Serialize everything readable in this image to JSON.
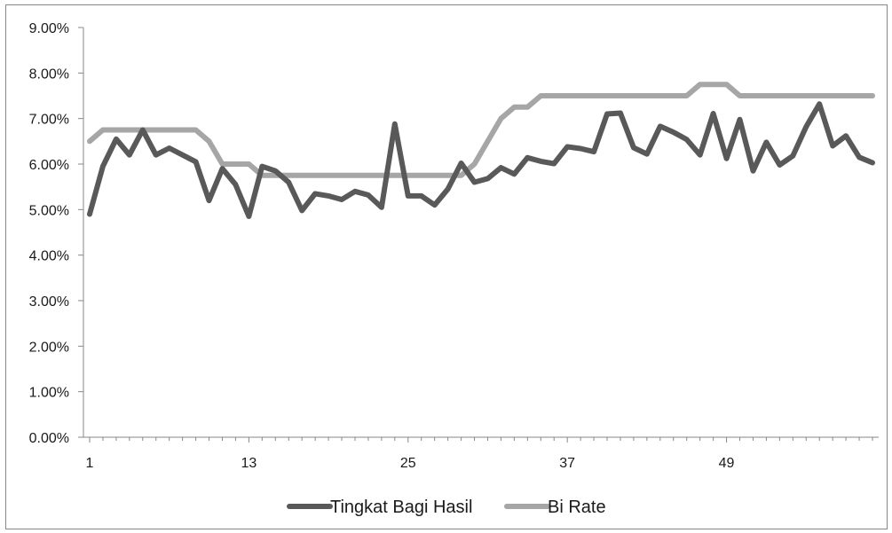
{
  "chart_data": {
    "type": "line",
    "title": "",
    "xlabel": "",
    "ylabel": "",
    "ylim": [
      0,
      0.09
    ],
    "y_ticks": [
      0,
      0.01,
      0.02,
      0.03,
      0.04,
      0.05,
      0.06,
      0.07,
      0.08,
      0.09
    ],
    "y_tick_labels": [
      "0.00%",
      "1.00%",
      "2.00%",
      "3.00%",
      "4.00%",
      "5.00%",
      "6.00%",
      "7.00%",
      "8.00%",
      "9.00%"
    ],
    "xlim": [
      1,
      60
    ],
    "x_ticks": [
      1,
      13,
      25,
      37,
      49
    ],
    "x_tick_labels": [
      "1",
      "13",
      "25",
      "37",
      "49"
    ],
    "grid": false,
    "legend_position": "bottom",
    "series": [
      {
        "name": "Tingkat Bagi Hasil",
        "color": "#595959",
        "values": [
          0.049,
          0.0595,
          0.0655,
          0.062,
          0.0675,
          0.062,
          0.0635,
          0.062,
          0.0605,
          0.052,
          0.059,
          0.0555,
          0.0485,
          0.0595,
          0.0585,
          0.056,
          0.0498,
          0.0535,
          0.053,
          0.0522,
          0.054,
          0.0532,
          0.0505,
          0.0688,
          0.053,
          0.053,
          0.051,
          0.0545,
          0.0602,
          0.056,
          0.0568,
          0.0592,
          0.0578,
          0.0614,
          0.0606,
          0.0601,
          0.0638,
          0.0634,
          0.0627,
          0.071,
          0.0712,
          0.0636,
          0.0622,
          0.0683,
          0.067,
          0.0654,
          0.062,
          0.0711,
          0.0612,
          0.0698,
          0.0585,
          0.0648,
          0.0598,
          0.0618,
          0.0682,
          0.0732,
          0.064,
          0.0662,
          0.0615,
          0.0603
        ]
      },
      {
        "name": "Bi Rate",
        "color": "#a6a6a6",
        "values": [
          0.065,
          0.0675,
          0.0675,
          0.0675,
          0.0675,
          0.0675,
          0.0675,
          0.0675,
          0.0675,
          0.065,
          0.06,
          0.06,
          0.06,
          0.0575,
          0.0575,
          0.0575,
          0.0575,
          0.0575,
          0.0575,
          0.0575,
          0.0575,
          0.0575,
          0.0575,
          0.0575,
          0.0575,
          0.0575,
          0.0575,
          0.0575,
          0.0575,
          0.06,
          0.065,
          0.07,
          0.0725,
          0.0725,
          0.075,
          0.075,
          0.075,
          0.075,
          0.075,
          0.075,
          0.075,
          0.075,
          0.075,
          0.075,
          0.075,
          0.075,
          0.0775,
          0.0775,
          0.0775,
          0.075,
          0.075,
          0.075,
          0.075,
          0.075,
          0.075,
          0.075,
          0.075,
          0.075,
          0.075,
          0.075
        ]
      }
    ]
  }
}
